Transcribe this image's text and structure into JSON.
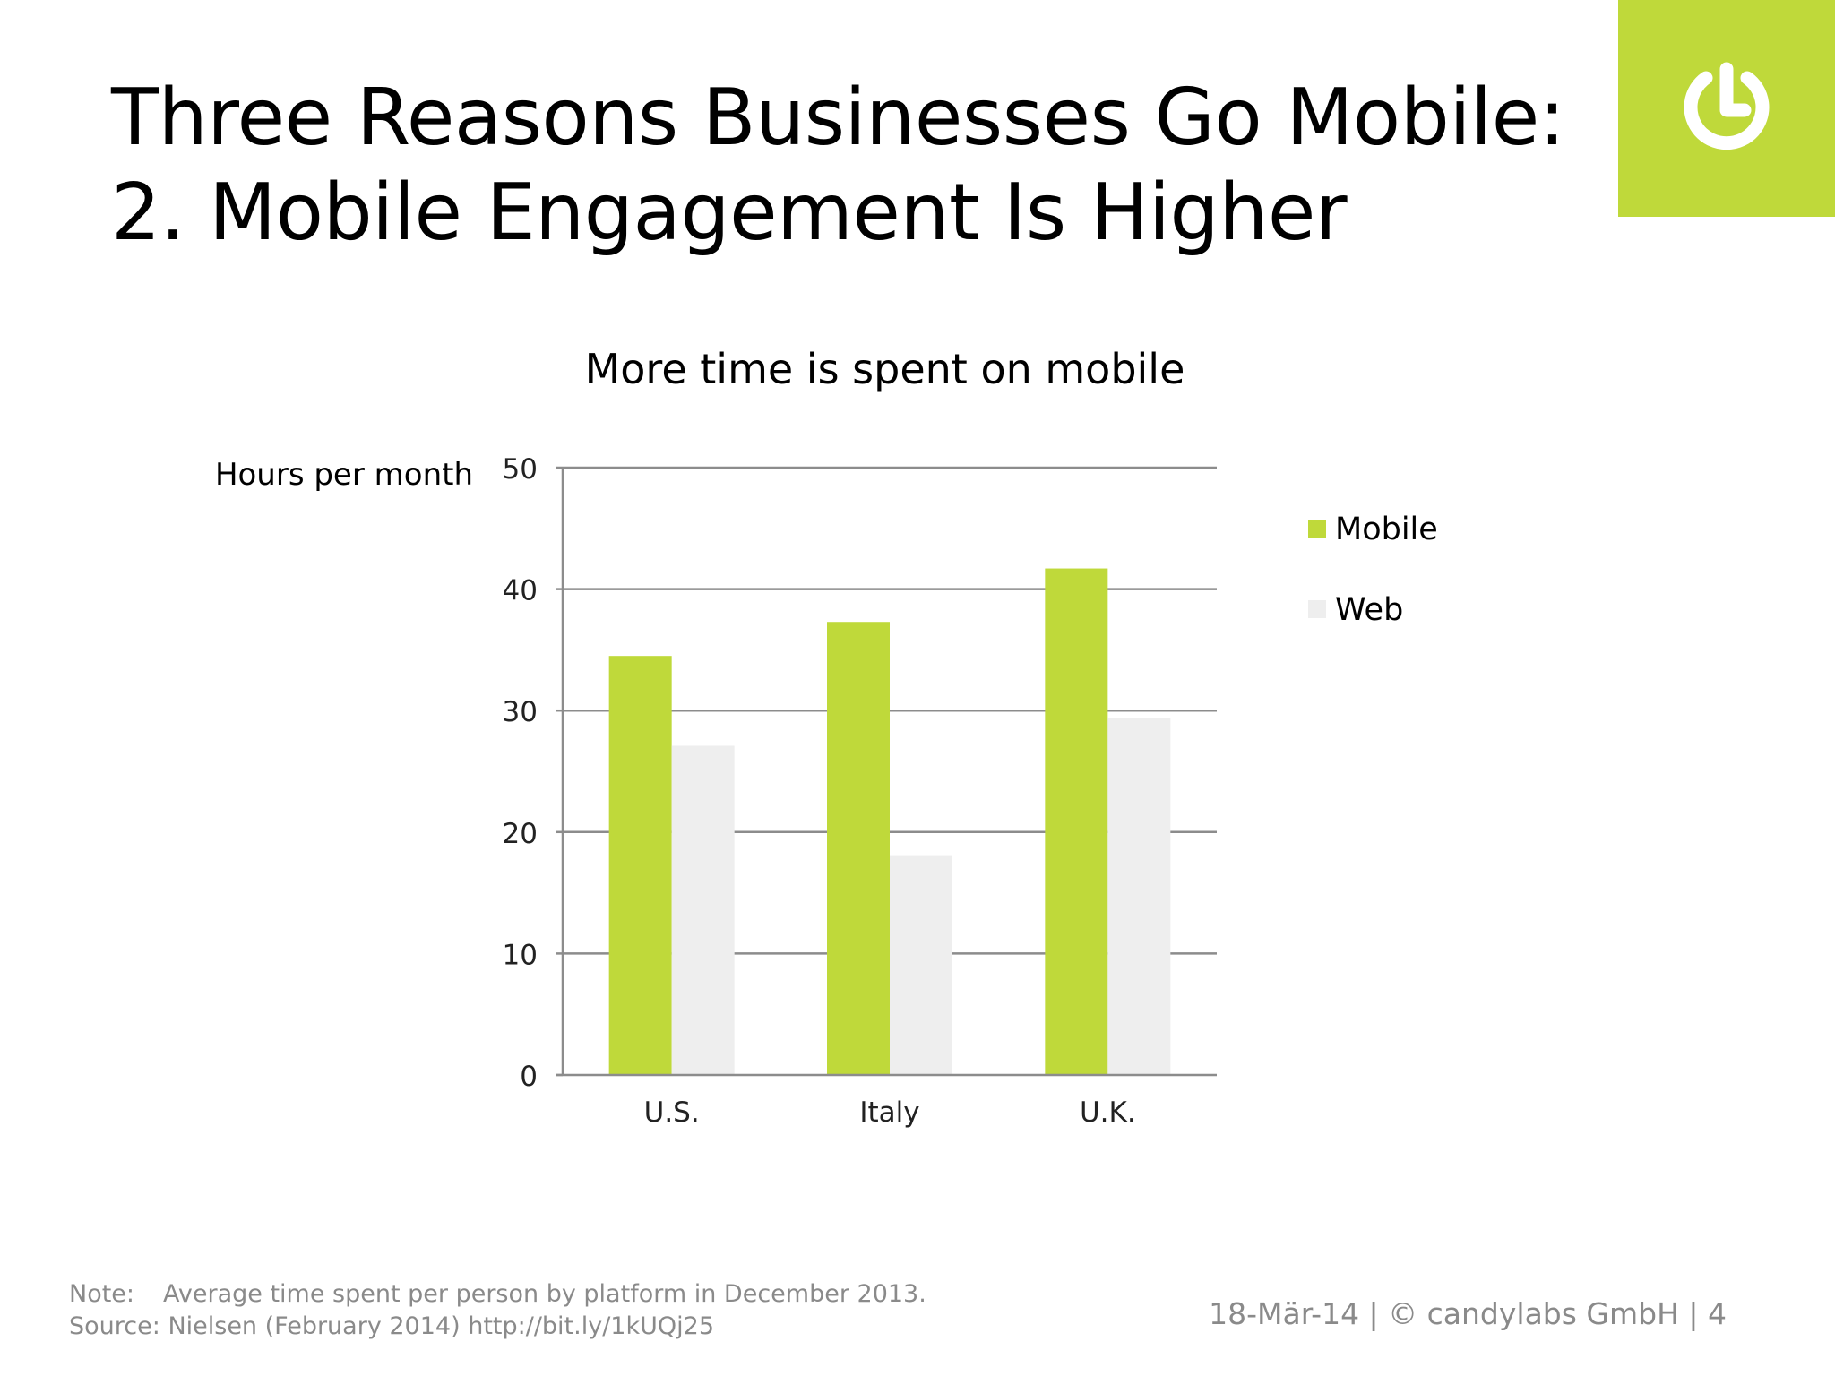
{
  "slide": {
    "title_line1": "Three Reasons Businesses Go Mobile:",
    "title_line2": "2. Mobile Engagement Is Higher",
    "logo": "power-icon",
    "accent_color": "#bfd93a"
  },
  "chart_data": {
    "type": "bar",
    "title": "More time is spent on mobile",
    "ylabel": "Hours per month",
    "xlabel": "",
    "categories": [
      "U.S.",
      "Italy",
      "U.K."
    ],
    "series": [
      {
        "name": "Mobile",
        "values": [
          34.5,
          37.3,
          41.7
        ],
        "color": "#bfd93a"
      },
      {
        "name": "Web",
        "values": [
          27.1,
          18.1,
          29.4
        ],
        "color": "#eeeeee"
      }
    ],
    "ylim": [
      0,
      50
    ],
    "yticks": [
      0,
      10,
      20,
      30,
      40,
      50
    ],
    "grid": true,
    "legend_position": "right"
  },
  "footer": {
    "note_label": "Note:",
    "note_text": "Average time spent per person by platform in December 2013.",
    "source_label": "Source:",
    "source_text": "Nielsen (February 2014) http://bit.ly/1kUQj25",
    "right_text": "18-Mär-14 | © candylabs GmbH | 4"
  }
}
